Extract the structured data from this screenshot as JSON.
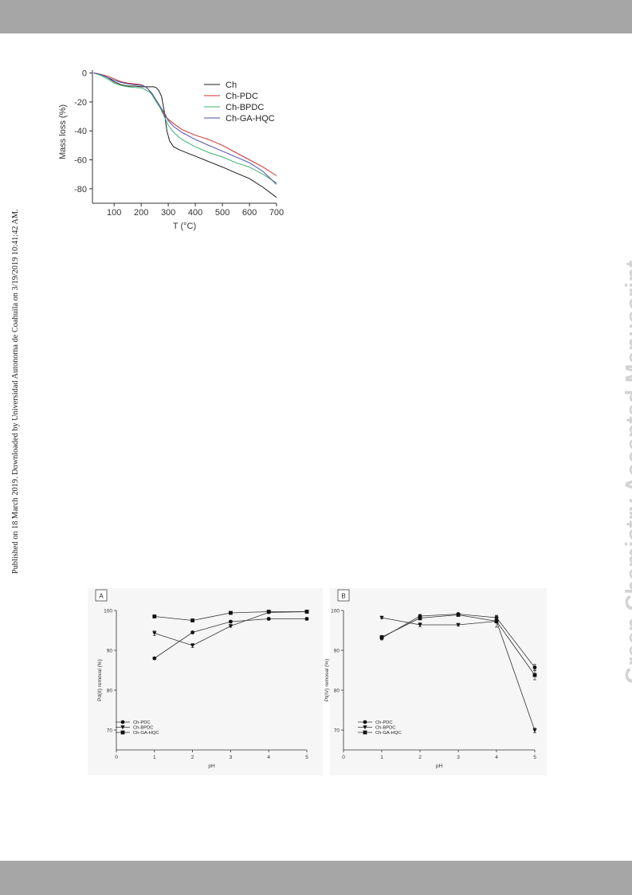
{
  "side_note": "Published on 18 March 2019. Downloaded by Universidad Autonoma de Coahuila on 3/19/2019 10:41:42 AM.",
  "watermark": "Green Chemistry Accepted Manuscript",
  "colors": {
    "header_bar": "#a6a6a6",
    "footer_bar": "#a6a6a6",
    "watermark": "#d3d3d3"
  },
  "chart_data": [
    {
      "type": "line",
      "xlabel": "T (°C)",
      "ylabel": "Mass loss (%)",
      "xlim": [
        20,
        700
      ],
      "ylim": [
        -90,
        2
      ],
      "xticks": [
        100,
        200,
        300,
        400,
        500,
        600,
        700
      ],
      "yticks": [
        0,
        -20,
        -40,
        -60,
        -80
      ],
      "legend_position": "top-right",
      "series": [
        {
          "name": "Ch",
          "color": "#1a1a1a",
          "x": [
            25,
            50,
            75,
            100,
            125,
            150,
            175,
            200,
            215,
            230,
            245,
            255,
            265,
            275,
            285,
            295,
            305,
            320,
            340,
            380,
            420,
            460,
            500,
            550,
            600,
            650,
            700
          ],
          "y": [
            0,
            -1,
            -3,
            -6,
            -8,
            -9,
            -9,
            -9.5,
            -9.5,
            -9.5,
            -9.5,
            -10,
            -12,
            -16,
            -26,
            -40,
            -47,
            -51,
            -53,
            -56,
            -59,
            -62,
            -65,
            -69,
            -73,
            -79,
            -86
          ]
        },
        {
          "name": "Ch-PDC",
          "color": "#cc3333",
          "x": [
            25,
            50,
            75,
            100,
            125,
            150,
            175,
            200,
            210,
            220,
            230,
            240,
            250,
            260,
            270,
            280,
            290,
            300,
            320,
            350,
            400,
            450,
            500,
            550,
            600,
            650,
            700
          ],
          "y": [
            0,
            -1,
            -2,
            -4,
            -6,
            -7,
            -7.5,
            -8,
            -9,
            -10,
            -12,
            -15,
            -18,
            -21,
            -24,
            -27,
            -30,
            -32,
            -35,
            -39,
            -43,
            -46,
            -50,
            -55,
            -60,
            -65,
            -71
          ]
        },
        {
          "name": "Ch-BPDC",
          "color": "#3cb371",
          "x": [
            25,
            50,
            75,
            100,
            125,
            150,
            175,
            200,
            210,
            220,
            230,
            240,
            250,
            260,
            270,
            280,
            290,
            300,
            320,
            350,
            400,
            450,
            500,
            550,
            600,
            650,
            700
          ],
          "y": [
            0,
            -1.5,
            -4,
            -7,
            -8.5,
            -9.5,
            -10,
            -10.3,
            -11,
            -12,
            -13,
            -15,
            -18,
            -21,
            -24,
            -28,
            -32,
            -36,
            -41,
            -46,
            -51,
            -55,
            -58,
            -62,
            -65,
            -70,
            -76
          ]
        },
        {
          "name": "Ch-GA-HQC",
          "color": "#4a4aa8",
          "x": [
            25,
            50,
            75,
            100,
            125,
            150,
            175,
            200,
            210,
            220,
            230,
            240,
            250,
            260,
            270,
            280,
            290,
            300,
            320,
            350,
            400,
            450,
            500,
            550,
            600,
            650,
            700
          ],
          "y": [
            0,
            -1,
            -3,
            -5,
            -6.5,
            -7.5,
            -8,
            -8.5,
            -9,
            -10,
            -12,
            -14,
            -17,
            -20,
            -23,
            -26,
            -29,
            -33,
            -37,
            -41,
            -46,
            -50,
            -54,
            -58,
            -62,
            -68,
            -77
          ]
        }
      ]
    },
    {
      "type": "line",
      "panel_label": "A",
      "xlabel": "pH",
      "ylabel": "Pd(II) removal (%)",
      "xlim": [
        0,
        5
      ],
      "ylim": [
        65,
        100
      ],
      "xticks": [
        0,
        1,
        2,
        3,
        4,
        5
      ],
      "yticks": [
        70,
        80,
        90,
        100
      ],
      "legend_position": "bottom-left",
      "series": [
        {
          "name": "Ch-PDC",
          "marker": "circle",
          "x": [
            1,
            2,
            3,
            4,
            5
          ],
          "y": [
            88,
            94.5,
            97.2,
            97.9,
            97.9
          ],
          "err": [
            0.3,
            0.3,
            0.3,
            0.3,
            0.3
          ]
        },
        {
          "name": "Ch-BPDC",
          "marker": "triangle-down",
          "x": [
            1,
            2,
            3,
            4,
            5
          ],
          "y": [
            94.3,
            91.2,
            96.1,
            99.5,
            99.7
          ],
          "err": [
            0.6,
            0.5,
            0.3,
            0.2,
            0.2
          ]
        },
        {
          "name": "Ch-GA-HQC",
          "marker": "square",
          "x": [
            1,
            2,
            3,
            4,
            5
          ],
          "y": [
            98.5,
            97.5,
            99.4,
            99.7,
            99.7
          ],
          "err": [
            0.2,
            0.2,
            0.2,
            0.2,
            0.2
          ]
        }
      ]
    },
    {
      "type": "line",
      "panel_label": "B",
      "xlabel": "pH",
      "ylabel": "Pt(IV) removal (%)",
      "xlim": [
        0,
        5
      ],
      "ylim": [
        65,
        100
      ],
      "xticks": [
        0,
        1,
        2,
        3,
        4,
        5
      ],
      "yticks": [
        70,
        80,
        90,
        100
      ],
      "legend_position": "bottom-left",
      "series": [
        {
          "name": "Ch-PDC",
          "marker": "circle",
          "x": [
            1,
            2,
            3,
            4,
            5
          ],
          "y": [
            93.1,
            98.6,
            99.1,
            98.2,
            85.7
          ],
          "err": [
            0.5,
            0.4,
            0.3,
            0.5,
            0.8
          ]
        },
        {
          "name": "Ch-BPDC",
          "marker": "triangle-down",
          "x": [
            1,
            2,
            3,
            4,
            5
          ],
          "y": [
            98.2,
            96.4,
            96.4,
            97.3,
            69.9
          ],
          "err": [
            0.3,
            0.5,
            0.3,
            0.4,
            0.6
          ]
        },
        {
          "name": "Ch-GA-HQC",
          "marker": "square",
          "x": [
            1,
            2,
            3,
            4,
            5
          ],
          "y": [
            93.3,
            98.1,
            98.9,
            97.3,
            83.8
          ],
          "err": [
            0.4,
            0.5,
            0.3,
            1.5,
            1.2
          ]
        }
      ]
    }
  ]
}
